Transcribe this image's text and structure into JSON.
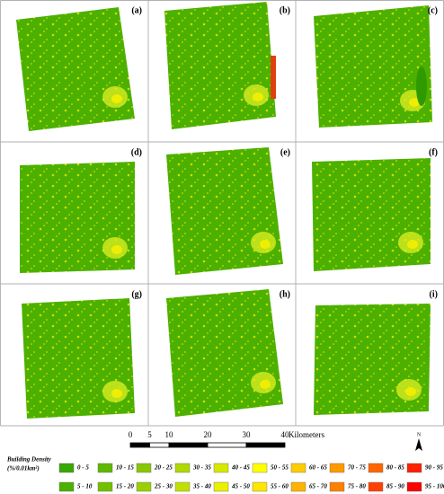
{
  "panels": [
    {
      "label": "(a)"
    },
    {
      "label": "(b)"
    },
    {
      "label": "(c)"
    },
    {
      "label": "(d)"
    },
    {
      "label": "(e)"
    },
    {
      "label": "(f)"
    },
    {
      "label": "(g)"
    },
    {
      "label": "(h)"
    },
    {
      "label": "(i)"
    }
  ],
  "scale_bar": {
    "labels": [
      "0",
      "5",
      "10",
      "20",
      "30",
      "40"
    ],
    "unit": "Kilometers"
  },
  "north_arrow": "N",
  "legend": {
    "title": "Building Density",
    "unit": "(%/0.01km²)",
    "items": [
      {
        "label": "0 - 5",
        "color": "#38a800"
      },
      {
        "label": "5 - 10",
        "color": "#4cb000"
      },
      {
        "label": "10 - 15",
        "color": "#5fb800"
      },
      {
        "label": "15 - 20",
        "color": "#72c000"
      },
      {
        "label": "20 - 25",
        "color": "#86c800"
      },
      {
        "label": "25 - 30",
        "color": "#9ad000"
      },
      {
        "label": "30 - 35",
        "color": "#aed800"
      },
      {
        "label": "35 - 40",
        "color": "#c2e000"
      },
      {
        "label": "40 - 45",
        "color": "#d6e800"
      },
      {
        "label": "45 - 50",
        "color": "#eaf000"
      },
      {
        "label": "50 - 55",
        "color": "#ffff00"
      },
      {
        "label": "55 - 60",
        "color": "#ffe600"
      },
      {
        "label": "60 - 65",
        "color": "#ffcc00"
      },
      {
        "label": "65 - 70",
        "color": "#ffb300"
      },
      {
        "label": "70 - 75",
        "color": "#ff9900"
      },
      {
        "label": "75 - 80",
        "color": "#ff8000"
      },
      {
        "label": "80 - 85",
        "color": "#ff6600"
      },
      {
        "label": "85 - 90",
        "color": "#ff4000"
      },
      {
        "label": "90 - 95",
        "color": "#ff2000"
      },
      {
        "label": "95 - 100",
        "color": "#ff0000"
      }
    ]
  }
}
